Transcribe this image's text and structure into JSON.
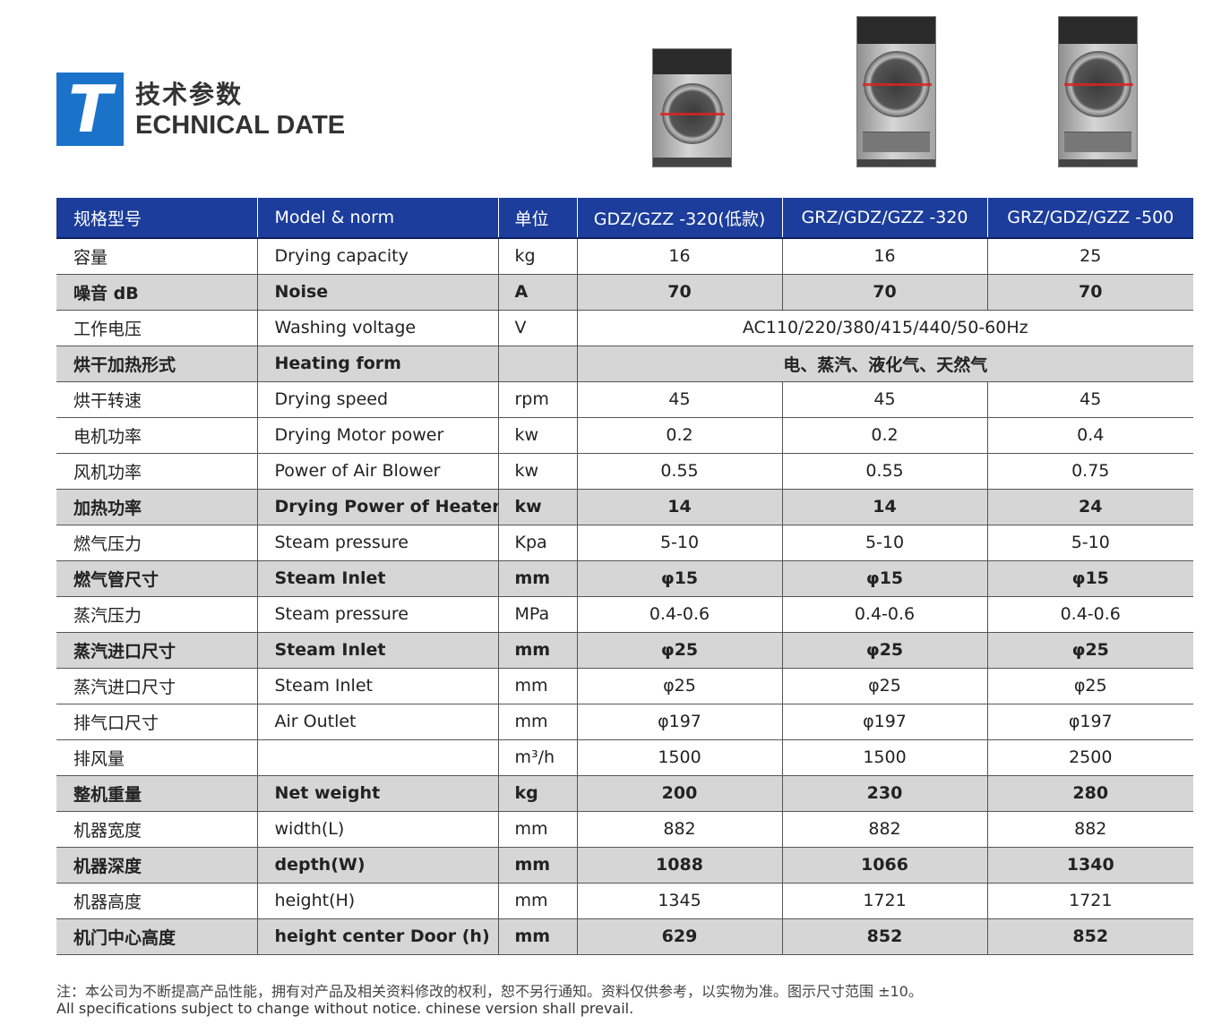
{
  "header": {
    "logo_letter": "T",
    "title_cn": "技术参数",
    "title_en": "ECHNICAL DATE"
  },
  "table": {
    "headers": [
      "规格型号",
      "Model & norm",
      "单位",
      "GDZ/GZZ -320(低款)",
      "GRZ/GDZ/GZZ -320",
      "GRZ/GDZ/GZZ -500"
    ],
    "rows": [
      {
        "cn": "容量",
        "en": "Drying capacity",
        "unit": "kg",
        "v1": "16",
        "v2": "16",
        "v3": "25"
      },
      {
        "cn": "噪音 dB",
        "en": "Noise",
        "unit": "A",
        "v1": "70",
        "v2": "70",
        "v3": "70"
      },
      {
        "cn": "工作电压",
        "en": "Washing  voltage",
        "unit": "V",
        "merged": "AC110/220/380/415/440/50-60Hz"
      },
      {
        "cn": "烘干加热形式",
        "en": "Heating form",
        "unit": "",
        "merged": "电、蒸汽、液化气、天然气"
      },
      {
        "cn": "烘干转速",
        "en": "Drying speed",
        "unit": "rpm",
        "v1": "45",
        "v2": "45",
        "v3": "45"
      },
      {
        "cn": "电机功率",
        "en": "Drying Motor power",
        "unit": "kw",
        "v1": "0.2",
        "v2": "0.2",
        "v3": "0.4"
      },
      {
        "cn": "风机功率",
        "en": "Power of Air Blower",
        "unit": "kw",
        "v1": "0.55",
        "v2": "0.55",
        "v3": "0.75"
      },
      {
        "cn": "加热功率",
        "en": "Drying Power of Heater",
        "unit": "kw",
        "v1": "14",
        "v2": "14",
        "v3": "24"
      },
      {
        "cn": "燃气压力",
        "en": "Steam pressure",
        "unit": "Kpa",
        "v1": "5-10",
        "v2": "5-10",
        "v3": "5-10"
      },
      {
        "cn": "燃气管尺寸",
        "en": "Steam Inlet",
        "unit": "mm",
        "v1": "φ15",
        "v2": "φ15",
        "v3": "φ15"
      },
      {
        "cn": "蒸汽压力",
        "en": "Steam pressure",
        "unit": "MPa",
        "v1": "0.4-0.6",
        "v2": "0.4-0.6",
        "v3": "0.4-0.6"
      },
      {
        "cn": "蒸汽进口尺寸",
        "en": "Steam Inlet",
        "unit": "mm",
        "v1": "φ25",
        "v2": "φ25",
        "v3": "φ25"
      },
      {
        "cn": "蒸汽进口尺寸",
        "en": "Steam Inlet",
        "unit": "mm",
        "v1": "φ25",
        "v2": "φ25",
        "v3": "φ25"
      },
      {
        "cn": "排气口尺寸",
        "en": "Air Outlet",
        "unit": "mm",
        "v1": "φ197",
        "v2": "φ197",
        "v3": "φ197"
      },
      {
        "cn": "排风量",
        "en": "",
        "unit": "m³/h",
        "v1": "1500",
        "v2": "1500",
        "v3": "2500"
      },
      {
        "cn": "整机重量",
        "en": "Net weight",
        "unit": "kg",
        "v1": "200",
        "v2": "230",
        "v3": "280"
      },
      {
        "cn": "机器宽度",
        "en": "width(L)",
        "unit": "mm",
        "v1": "882",
        "v2": "882",
        "v3": "882"
      },
      {
        "cn": "机器深度",
        "en": "depth(W)",
        "unit": "mm",
        "v1": "1088",
        "v2": "1066",
        "v3": "1340"
      },
      {
        "cn": "机器高度",
        "en": "height(H)",
        "unit": "mm",
        "v1": "1345",
        "v2": "1721",
        "v3": "1721"
      },
      {
        "cn": "机门中心高度",
        "en": "height center Door (h)",
        "unit": "mm",
        "v1": "629",
        "v2": "852",
        "v3": "852"
      }
    ]
  },
  "notes": {
    "cn": "注：本公司为不断提高产品性能，拥有对产品及相关资料修改的权利，恕不另行通知。资料仅供参考，以实物为准。图示尺寸范围 ±10。",
    "en": "All specifications subject to change without notice. chinese version shall prevail."
  },
  "colors": {
    "logo_blue": "#1a72c9",
    "header_blue": "#1c3d9b",
    "shade_gray": "#d6d6d6"
  }
}
